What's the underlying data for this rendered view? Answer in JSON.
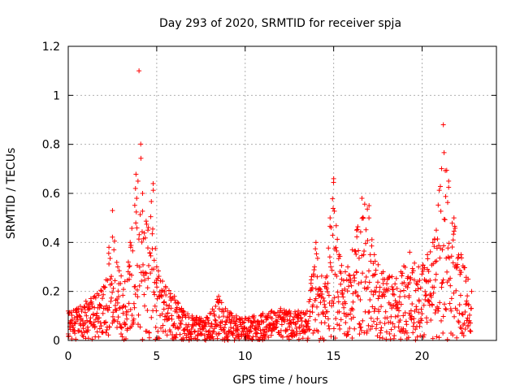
{
  "chart_data": {
    "type": "scatter",
    "title": "Day 293 of 2020, SRMTID for receiver spja",
    "xlabel": "GPS time / hours",
    "ylabel": "SRMTID / TECUs",
    "xlim": [
      0,
      24.2
    ],
    "ylim": [
      0,
      1.2
    ],
    "x_ticks": [
      0,
      5,
      10,
      15,
      20
    ],
    "x_tick_labels": [
      "0",
      "5",
      "10",
      "15",
      "20"
    ],
    "y_ticks": [
      0,
      0.2,
      0.4,
      0.6,
      0.8,
      1.0,
      1.2
    ],
    "y_tick_labels": [
      "0",
      "0.2",
      "0.4",
      "0.6",
      "0.8",
      "1",
      "1.2"
    ],
    "grid": true,
    "marker": "+",
    "color": "#ff0000",
    "envelope_note": "Dense point cloud; representative upper envelope (x hours, y TECU) used to generate points",
    "envelope": [
      [
        0.0,
        0.12
      ],
      [
        0.5,
        0.13
      ],
      [
        1.0,
        0.16
      ],
      [
        1.5,
        0.18
      ],
      [
        2.0,
        0.22
      ],
      [
        2.3,
        0.38
      ],
      [
        2.5,
        0.53
      ],
      [
        2.8,
        0.3
      ],
      [
        3.2,
        0.24
      ],
      [
        3.5,
        0.4
      ],
      [
        3.8,
        0.62
      ],
      [
        4.0,
        1.1
      ],
      [
        4.2,
        0.6
      ],
      [
        4.5,
        0.45
      ],
      [
        4.8,
        0.64
      ],
      [
        5.0,
        0.3
      ],
      [
        5.5,
        0.22
      ],
      [
        6.0,
        0.18
      ],
      [
        6.5,
        0.12
      ],
      [
        7.0,
        0.1
      ],
      [
        7.5,
        0.09
      ],
      [
        8.0,
        0.11
      ],
      [
        8.5,
        0.18
      ],
      [
        9.0,
        0.12
      ],
      [
        9.5,
        0.1
      ],
      [
        10.0,
        0.09
      ],
      [
        10.5,
        0.1
      ],
      [
        11.0,
        0.11
      ],
      [
        11.5,
        0.12
      ],
      [
        12.0,
        0.13
      ],
      [
        12.5,
        0.12
      ],
      [
        13.0,
        0.12
      ],
      [
        13.5,
        0.12
      ],
      [
        14.0,
        0.4
      ],
      [
        14.5,
        0.22
      ],
      [
        14.8,
        0.5
      ],
      [
        15.0,
        0.66
      ],
      [
        15.3,
        0.35
      ],
      [
        15.8,
        0.3
      ],
      [
        16.3,
        0.45
      ],
      [
        16.6,
        0.58
      ],
      [
        17.0,
        0.55
      ],
      [
        17.3,
        0.35
      ],
      [
        17.8,
        0.28
      ],
      [
        18.3,
        0.26
      ],
      [
        18.8,
        0.28
      ],
      [
        19.3,
        0.36
      ],
      [
        19.8,
        0.3
      ],
      [
        20.3,
        0.35
      ],
      [
        20.8,
        0.45
      ],
      [
        21.2,
        0.88
      ],
      [
        21.5,
        0.65
      ],
      [
        21.8,
        0.5
      ],
      [
        22.2,
        0.35
      ],
      [
        22.6,
        0.25
      ],
      [
        22.8,
        0.2
      ]
    ]
  }
}
